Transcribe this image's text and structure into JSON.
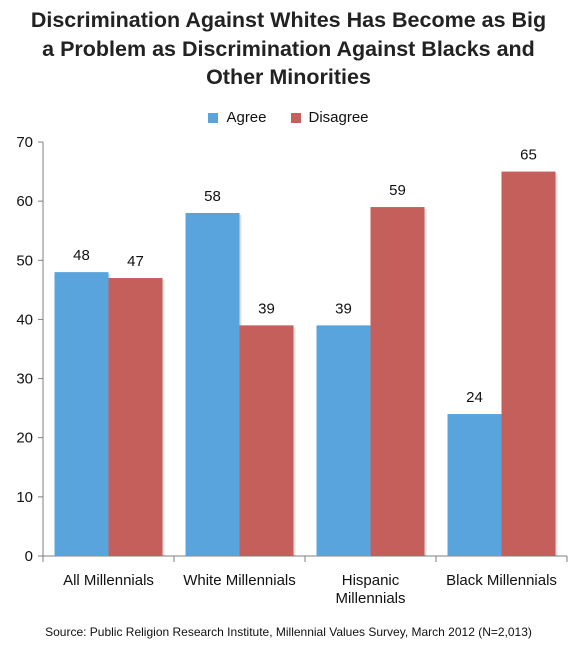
{
  "chart_data": {
    "type": "bar",
    "title_lines": [
      "Discrimination Against Whites Has Become as Big",
      "a Problem as Discrimination Against Blacks and",
      "Other Minorities"
    ],
    "categories": [
      [
        "All Millennials"
      ],
      [
        "White Millennials"
      ],
      [
        "Hispanic",
        "Millennials"
      ],
      [
        "Black Millennials"
      ]
    ],
    "series": [
      {
        "name": "Agree",
        "color": "#5aa4dd",
        "values": [
          48,
          58,
          39,
          24
        ]
      },
      {
        "name": "Disagree",
        "color": "#c55f5c",
        "values": [
          47,
          39,
          59,
          65
        ]
      }
    ],
    "ylim": [
      0,
      70
    ],
    "yticks": [
      0,
      10,
      20,
      30,
      40,
      50,
      60,
      70
    ],
    "grid": false,
    "legend_position": "top-center",
    "data_labels": true
  },
  "source": "Source: Public Religion Research Institute, Millennial Values Survey, March 2012 (N=2,013)"
}
